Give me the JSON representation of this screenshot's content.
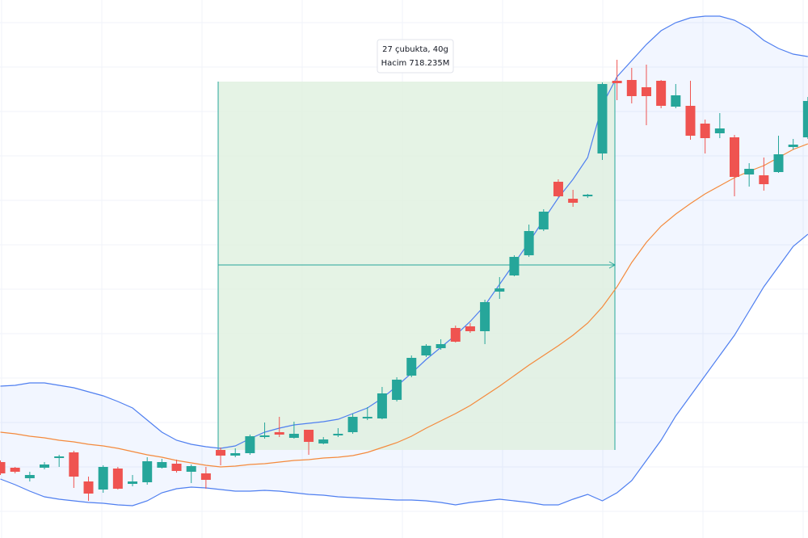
{
  "chart_data": {
    "type": "candlestick",
    "categories": [
      null,
      null,
      null,
      null,
      null,
      null,
      null,
      null,
      null,
      null,
      null,
      null,
      null,
      null,
      null,
      null,
      null,
      null,
      null,
      null,
      null,
      null,
      null,
      null,
      null,
      null,
      null,
      null,
      null,
      null,
      null,
      null,
      null,
      null,
      null,
      null,
      null,
      null,
      null,
      null,
      null,
      null,
      null,
      null,
      null,
      null,
      null,
      null,
      null,
      null,
      null,
      null,
      null,
      null,
      null,
      null
    ],
    "open": [
      94,
      87,
      74,
      87,
      99,
      106,
      70,
      60,
      86,
      67,
      69,
      87,
      92,
      82,
      80,
      109,
      102,
      105,
      125,
      131,
      124,
      134,
      117,
      127,
      131,
      148,
      148,
      171,
      201,
      226,
      235,
      260,
      262,
      256,
      305,
      325,
      350,
      382,
      441,
      420,
      423,
      476,
      566,
      567,
      558,
      566,
      534,
      535,
      513,
      501,
      496,
      450,
      449,
      453,
      484,
      496
    ],
    "high": [
      96,
      88,
      82,
      94,
      103,
      108,
      76,
      90,
      88,
      78,
      100,
      98,
      97,
      91,
      88,
      112,
      111,
      128,
      143,
      150,
      144,
      134,
      125,
      136,
      154,
      162,
      187,
      199,
      226,
      240,
      246,
      263,
      266,
      295,
      323,
      350,
      388,
      407,
      444,
      431,
      426,
      564,
      592,
      582,
      586,
      567,
      562,
      566,
      518,
      526,
      499,
      464,
      471,
      498,
      494,
      546
    ],
    "low": [
      78,
      80,
      70,
      85,
      88,
      62,
      46,
      56,
      60,
      64,
      66,
      86,
      81,
      68,
      61,
      90,
      100,
      103,
      123,
      125,
      123,
      103,
      116,
      125,
      129,
      146,
      147,
      169,
      199,
      224,
      233,
      242,
      254,
      240,
      296,
      324,
      348,
      380,
      422,
      410,
      421,
      468,
      542,
      538,
      511,
      532,
      532,
      493,
      476,
      495,
      423,
      435,
      430,
      452,
      481,
      494
    ],
    "close": [
      80,
      82,
      78,
      91,
      101,
      76,
      55,
      88,
      61,
      70,
      95,
      94,
      83,
      89,
      72,
      102,
      105,
      126,
      127,
      128,
      129,
      119,
      122,
      129,
      150,
      150,
      179,
      196,
      223,
      238,
      240,
      243,
      256,
      292,
      309,
      348,
      380,
      404,
      423,
      415,
      425,
      562,
      563,
      547,
      547,
      535,
      548,
      498,
      495,
      507,
      447,
      457,
      438,
      475,
      487,
      541
    ],
    "up_color": "#26a69a",
    "down_color": "#ef5350",
    "series": [
      {
        "color": "#4f7ff0",
        "values": [
          188,
          189,
          192,
          192,
          189,
          186,
          181,
          176,
          169,
          161,
          146,
          131,
          121,
          116,
          113,
          111,
          114,
          123,
          131,
          136,
          140,
          142,
          144,
          147,
          154,
          161,
          173,
          188,
          204,
          221,
          236,
          251,
          268,
          288,
          314,
          340,
          366,
          394,
          421,
          444,
          471,
          536,
          571,
          591,
          611,
          628,
          638,
          644,
          646,
          646,
          641,
          631,
          616,
          606,
          599,
          596
        ]
      },
      {
        "color": "#f48a3c",
        "values": [
          131,
          129,
          126,
          124,
          121,
          119,
          116,
          114,
          111,
          107,
          103,
          100,
          96,
          93,
          90,
          88,
          89,
          91,
          92,
          94,
          96,
          97,
          99,
          100,
          102,
          106,
          112,
          118,
          126,
          136,
          145,
          154,
          164,
          176,
          188,
          201,
          214,
          226,
          238,
          251,
          266,
          286,
          311,
          341,
          366,
          386,
          401,
          414,
          426,
          436,
          446,
          454,
          461,
          471,
          481,
          488
        ]
      },
      {
        "color": "#4f7ff0",
        "values": [
          73,
          66,
          58,
          51,
          48,
          46,
          44,
          43,
          41,
          40,
          46,
          56,
          61,
          63,
          62,
          60,
          58,
          58,
          59,
          58,
          56,
          54,
          53,
          51,
          50,
          49,
          48,
          47,
          47,
          46,
          44,
          41,
          44,
          46,
          48,
          46,
          44,
          41,
          41,
          48,
          54,
          46,
          56,
          71,
          96,
          121,
          151,
          176,
          201,
          226,
          251,
          281,
          311,
          336,
          361,
          376
        ]
      }
    ],
    "ylim": [
      0,
      666
    ],
    "annotation": [
      "27 çubukta, 40g",
      "Hacim 718.235M"
    ]
  }
}
